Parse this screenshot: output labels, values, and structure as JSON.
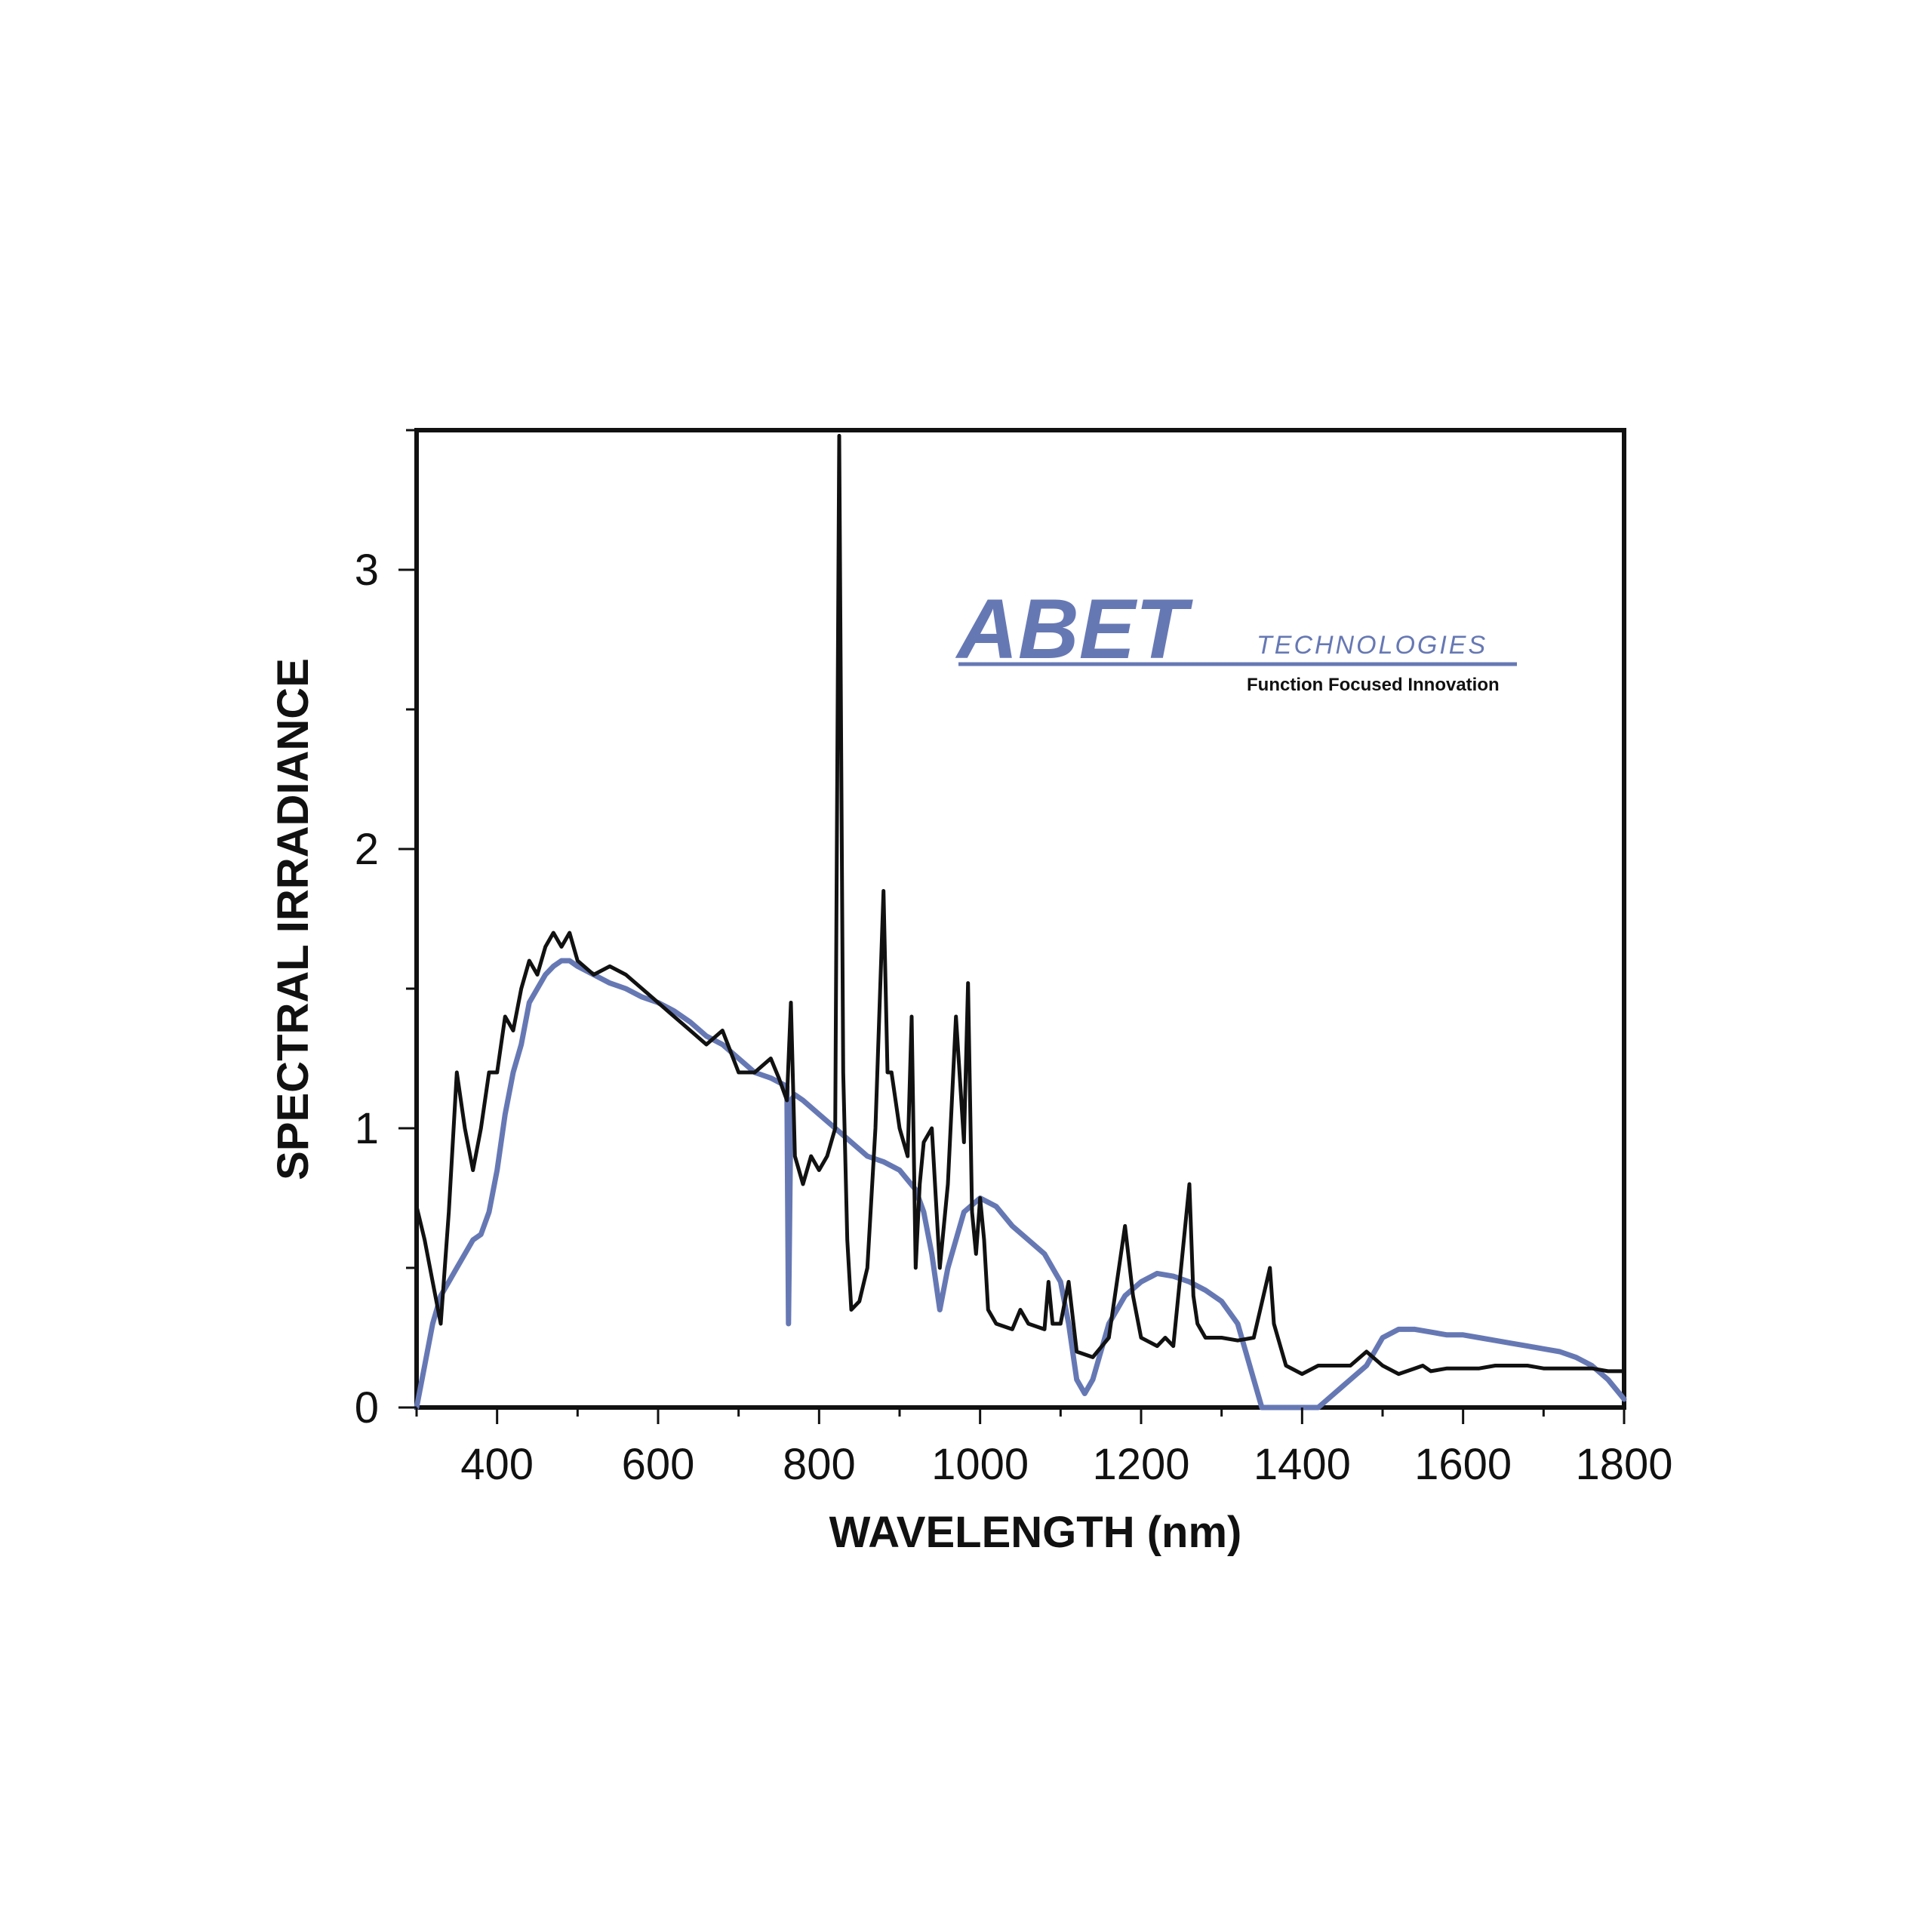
{
  "chart_data": {
    "type": "line",
    "title": "",
    "xlabel": "WAVELENGTH (nm)",
    "ylabel": "SPECTRAL IRRADIANCE",
    "xlim": [
      300,
      1800
    ],
    "ylim": [
      0,
      3.5
    ],
    "x_ticks": [
      400,
      600,
      800,
      1000,
      1200,
      1400,
      1600,
      1800
    ],
    "y_ticks": [
      0,
      1,
      2,
      3
    ],
    "grid": false,
    "legend": "none",
    "logo": {
      "name": "ABET",
      "sub": "TECHNOLOGIES",
      "tagline": "Function Focused Innovation"
    },
    "series": [
      {
        "color": "#6678b4",
        "x": [
          300,
          310,
          320,
          330,
          340,
          350,
          360,
          370,
          380,
          390,
          400,
          410,
          420,
          430,
          440,
          450,
          460,
          470,
          480,
          490,
          500,
          520,
          540,
          560,
          580,
          600,
          620,
          640,
          660,
          680,
          700,
          720,
          740,
          760,
          762,
          765,
          770,
          780,
          800,
          820,
          840,
          860,
          880,
          900,
          920,
          930,
          940,
          950,
          960,
          980,
          1000,
          1020,
          1040,
          1060,
          1080,
          1100,
          1110,
          1120,
          1130,
          1140,
          1160,
          1180,
          1200,
          1220,
          1240,
          1260,
          1280,
          1300,
          1320,
          1340,
          1350,
          1360,
          1380,
          1400,
          1420,
          1440,
          1460,
          1480,
          1500,
          1520,
          1540,
          1560,
          1580,
          1600,
          1620,
          1640,
          1660,
          1680,
          1700,
          1720,
          1740,
          1760,
          1780,
          1800
        ],
        "y": [
          0.0,
          0.15,
          0.3,
          0.4,
          0.45,
          0.5,
          0.55,
          0.6,
          0.62,
          0.7,
          0.85,
          1.05,
          1.2,
          1.3,
          1.45,
          1.5,
          1.55,
          1.58,
          1.6,
          1.6,
          1.58,
          1.55,
          1.52,
          1.5,
          1.47,
          1.45,
          1.42,
          1.38,
          1.33,
          1.3,
          1.25,
          1.2,
          1.18,
          1.15,
          0.3,
          1.1,
          1.12,
          1.1,
          1.05,
          1.0,
          0.95,
          0.9,
          0.88,
          0.85,
          0.78,
          0.7,
          0.55,
          0.35,
          0.5,
          0.7,
          0.75,
          0.72,
          0.65,
          0.6,
          0.55,
          0.45,
          0.3,
          0.1,
          0.05,
          0.1,
          0.3,
          0.4,
          0.45,
          0.48,
          0.47,
          0.45,
          0.42,
          0.38,
          0.3,
          0.1,
          0.0,
          0.0,
          0.0,
          0.0,
          0.0,
          0.05,
          0.1,
          0.15,
          0.25,
          0.28,
          0.28,
          0.27,
          0.26,
          0.26,
          0.25,
          0.24,
          0.23,
          0.22,
          0.21,
          0.2,
          0.18,
          0.15,
          0.1,
          0.03
        ]
      },
      {
        "color": "#111111",
        "x": [
          300,
          310,
          320,
          330,
          340,
          350,
          360,
          370,
          380,
          390,
          400,
          410,
          420,
          430,
          440,
          450,
          460,
          470,
          480,
          490,
          500,
          520,
          540,
          560,
          580,
          600,
          620,
          640,
          660,
          680,
          700,
          720,
          740,
          750,
          760,
          765,
          770,
          780,
          790,
          800,
          810,
          820,
          825,
          830,
          835,
          840,
          850,
          860,
          870,
          880,
          885,
          890,
          900,
          910,
          915,
          920,
          925,
          930,
          940,
          950,
          960,
          970,
          980,
          985,
          990,
          995,
          1000,
          1005,
          1010,
          1020,
          1040,
          1050,
          1060,
          1080,
          1085,
          1090,
          1100,
          1110,
          1120,
          1140,
          1160,
          1180,
          1190,
          1200,
          1220,
          1230,
          1240,
          1260,
          1265,
          1270,
          1280,
          1300,
          1320,
          1340,
          1360,
          1365,
          1370,
          1380,
          1400,
          1420,
          1440,
          1460,
          1480,
          1500,
          1520,
          1540,
          1550,
          1560,
          1580,
          1600,
          1620,
          1640,
          1660,
          1680,
          1700,
          1720,
          1740,
          1760,
          1780,
          1800
        ],
        "y": [
          0.72,
          0.6,
          0.45,
          0.3,
          0.7,
          1.2,
          1.0,
          0.85,
          1.0,
          1.2,
          1.2,
          1.4,
          1.35,
          1.5,
          1.6,
          1.55,
          1.65,
          1.7,
          1.65,
          1.7,
          1.6,
          1.55,
          1.58,
          1.55,
          1.5,
          1.45,
          1.4,
          1.35,
          1.3,
          1.35,
          1.2,
          1.2,
          1.25,
          1.18,
          1.1,
          1.45,
          0.9,
          0.8,
          0.9,
          0.85,
          0.9,
          1.0,
          3.48,
          1.2,
          0.6,
          0.35,
          0.38,
          0.5,
          1.0,
          1.85,
          1.2,
          1.2,
          1.0,
          0.9,
          1.4,
          0.5,
          0.8,
          0.95,
          1.0,
          0.5,
          0.8,
          1.4,
          0.95,
          1.52,
          0.7,
          0.55,
          0.75,
          0.6,
          0.35,
          0.3,
          0.28,
          0.35,
          0.3,
          0.28,
          0.45,
          0.3,
          0.3,
          0.45,
          0.2,
          0.18,
          0.25,
          0.65,
          0.4,
          0.25,
          0.22,
          0.25,
          0.22,
          0.8,
          0.4,
          0.3,
          0.25,
          0.25,
          0.24,
          0.25,
          0.5,
          0.3,
          0.25,
          0.15,
          0.12,
          0.15,
          0.15,
          0.15,
          0.2,
          0.15,
          0.12,
          0.14,
          0.15,
          0.13,
          0.14,
          0.14,
          0.14,
          0.15,
          0.15,
          0.15,
          0.14,
          0.14,
          0.14,
          0.14,
          0.13,
          0.13
        ]
      }
    ]
  }
}
